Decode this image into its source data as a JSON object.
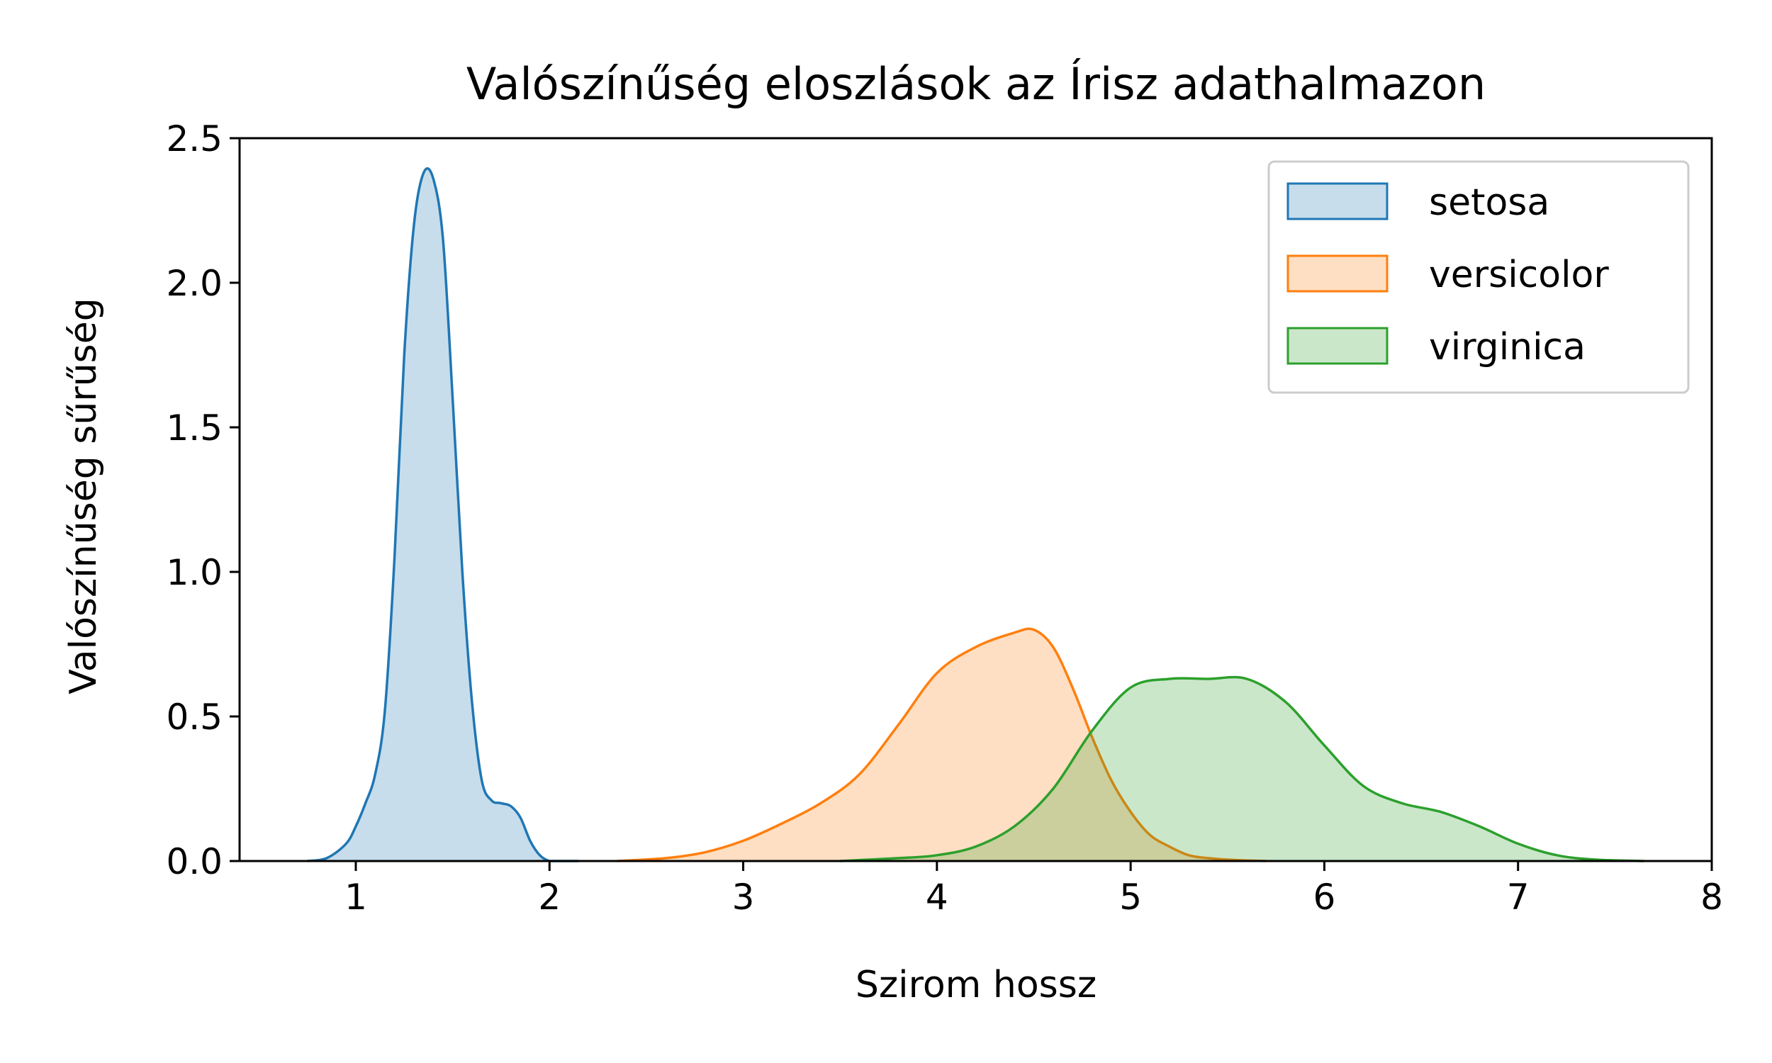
{
  "chart_data": {
    "type": "area",
    "title": "Valószínűség eloszlások az Írisz adathalmazon",
    "xlabel": "Szirom hossz",
    "ylabel": "Valószínűség sűrűség",
    "xlim": [
      0.4,
      8.0
    ],
    "ylim": [
      0.0,
      2.5
    ],
    "x_ticks": [
      "1",
      "2",
      "3",
      "4",
      "5",
      "6",
      "7",
      "8"
    ],
    "y_ticks": [
      "0.0",
      "0.5",
      "1.0",
      "1.5",
      "2.0",
      "2.5"
    ],
    "grid": false,
    "legend_position": "top-right",
    "series": [
      {
        "name": "setosa",
        "color": "#1f77b4",
        "fill": "#c6dbed",
        "x": [
          0.75,
          0.85,
          0.95,
          1.0,
          1.05,
          1.1,
          1.15,
          1.2,
          1.25,
          1.3,
          1.35,
          1.4,
          1.45,
          1.5,
          1.55,
          1.6,
          1.65,
          1.7,
          1.75,
          1.8,
          1.85,
          1.9,
          1.95,
          2.0,
          2.05,
          2.15
        ],
        "y": [
          0.0,
          0.01,
          0.06,
          0.12,
          0.2,
          0.3,
          0.52,
          1.05,
          1.75,
          2.2,
          2.38,
          2.36,
          2.15,
          1.6,
          1.0,
          0.55,
          0.28,
          0.21,
          0.2,
          0.19,
          0.15,
          0.07,
          0.02,
          0.0,
          0.0,
          0.0
        ]
      },
      {
        "name": "versicolor",
        "color": "#ff7f0e",
        "fill": "#fedbbe",
        "x": [
          2.35,
          2.6,
          2.8,
          3.0,
          3.2,
          3.4,
          3.6,
          3.8,
          4.0,
          4.2,
          4.4,
          4.5,
          4.6,
          4.7,
          4.8,
          4.9,
          5.0,
          5.1,
          5.2,
          5.3,
          5.4,
          5.5,
          5.6,
          5.7
        ],
        "y": [
          0.0,
          0.01,
          0.03,
          0.07,
          0.13,
          0.2,
          0.3,
          0.47,
          0.65,
          0.74,
          0.79,
          0.8,
          0.74,
          0.6,
          0.43,
          0.28,
          0.17,
          0.09,
          0.05,
          0.02,
          0.01,
          0.005,
          0.002,
          0.0
        ]
      },
      {
        "name": "virginica",
        "color": "#2ca02c",
        "fill": "#cce8c9",
        "x": [
          3.5,
          3.8,
          4.0,
          4.2,
          4.4,
          4.6,
          4.8,
          5.0,
          5.2,
          5.4,
          5.6,
          5.8,
          6.0,
          6.2,
          6.4,
          6.6,
          6.8,
          7.0,
          7.2,
          7.4,
          7.65
        ],
        "y": [
          0.0,
          0.01,
          0.02,
          0.05,
          0.12,
          0.25,
          0.45,
          0.6,
          0.63,
          0.63,
          0.63,
          0.55,
          0.4,
          0.26,
          0.2,
          0.17,
          0.12,
          0.06,
          0.02,
          0.005,
          0.0
        ]
      }
    ]
  }
}
